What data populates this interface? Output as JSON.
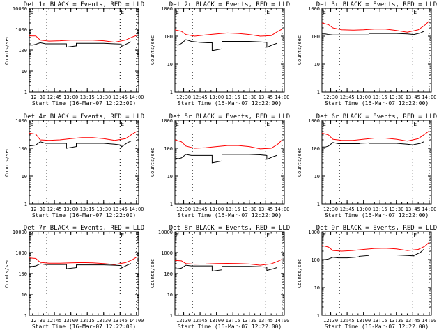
{
  "chart_data": [
    {
      "type": "line",
      "title": "Det 1r BLACK = Events, RED = LLD",
      "xlabel": "Start Time (16-Mar-07 12:22:00)",
      "ylabel": "Counts/sec",
      "yscale": "log",
      "ylim": [
        1,
        10000
      ],
      "yticks": [
        "1",
        "10",
        "100",
        "1000",
        "10000"
      ],
      "xlim": [
        "12:22",
        "14:02"
      ],
      "xticks": [
        "12:30",
        "12:45",
        "13:00",
        "13:15",
        "13:30",
        "13:45",
        "14:00"
      ],
      "vlines": [
        "12:38",
        "13:45",
        "14:00"
      ],
      "marker_labels": [
        "E",
        "E"
      ],
      "series": [
        {
          "name": "BLACK",
          "color": "#000000",
          "x": [
            "12:22",
            "12:25",
            "12:28",
            "12:32",
            "12:37",
            "12:45",
            "12:52",
            "12:56",
            "12:56",
            "13:05",
            "13:05",
            "13:10",
            "13:20",
            "13:30",
            "13:40",
            "13:46",
            "13:46",
            "13:52",
            "13:55"
          ],
          "y": [
            175,
            175,
            190,
            225,
            200,
            200,
            200,
            200,
            140,
            160,
            210,
            210,
            210,
            210,
            200,
            195,
            150,
            210,
            250
          ]
        },
        {
          "name": "RED",
          "color": "#ff0000",
          "x": [
            "12:22",
            "12:28",
            "12:32",
            "12:40",
            "12:50",
            "13:00",
            "13:10",
            "13:20",
            "13:30",
            "13:40",
            "13:50",
            "13:56",
            "14:00"
          ],
          "y": [
            480,
            470,
            300,
            270,
            280,
            300,
            300,
            300,
            280,
            240,
            300,
            420,
            500
          ]
        }
      ]
    },
    {
      "type": "line",
      "title": "Det 2r BLACK = Events, RED = LLD",
      "xlabel": "Start Time (16-Mar-07 12:22:00)",
      "ylabel": "Counts/sec",
      "yscale": "log",
      "ylim": [
        1,
        1000
      ],
      "yticks": [
        "1",
        "10",
        "100",
        "1000"
      ],
      "xlim": [
        "12:22",
        "14:02"
      ],
      "xticks": [
        "12:30",
        "12:45",
        "13:00",
        "13:15",
        "13:30",
        "13:45",
        "14:00"
      ],
      "vlines": [
        "12:38",
        "13:45",
        "14:00"
      ],
      "marker_labels": [
        "E",
        "E"
      ],
      "series": [
        {
          "name": "BLACK",
          "color": "#000000",
          "x": [
            "12:22",
            "12:25",
            "12:28",
            "12:32",
            "12:37",
            "12:45",
            "12:52",
            "12:56",
            "12:56",
            "13:05",
            "13:05",
            "13:10",
            "13:20",
            "13:30",
            "13:40",
            "13:46",
            "13:46",
            "13:52",
            "13:55"
          ],
          "y": [
            50,
            48,
            55,
            75,
            65,
            60,
            58,
            58,
            30,
            35,
            65,
            65,
            65,
            65,
            62,
            60,
            40,
            50,
            55
          ]
        },
        {
          "name": "RED",
          "color": "#ff0000",
          "x": [
            "12:22",
            "12:28",
            "12:32",
            "12:40",
            "12:50",
            "13:00",
            "13:10",
            "13:20",
            "13:30",
            "13:40",
            "13:50",
            "13:56",
            "14:00"
          ],
          "y": [
            170,
            150,
            115,
            100,
            110,
            120,
            130,
            125,
            115,
            100,
            105,
            150,
            180
          ]
        }
      ]
    },
    {
      "type": "line",
      "title": "Det 3r BLACK = Events, RED = LLD",
      "xlabel": "Start Time (16-Mar-07 12:22:00)",
      "ylabel": "Counts/sec",
      "yscale": "log",
      "ylim": [
        1,
        1000
      ],
      "yticks": [
        "1",
        "10",
        "100",
        "1000"
      ],
      "xlim": [
        "12:22",
        "14:02"
      ],
      "xticks": [
        "12:30",
        "12:45",
        "13:00",
        "13:15",
        "13:30",
        "13:45",
        "14:00"
      ],
      "vlines": [
        "12:38",
        "13:45",
        "14:00"
      ],
      "marker_labels": [
        "E",
        "E"
      ],
      "series": [
        {
          "name": "BLACK",
          "color": "#000000",
          "x": [
            "12:22",
            "12:25",
            "12:28",
            "12:32",
            "12:37",
            "12:45",
            "12:52",
            "12:56",
            "12:56",
            "13:05",
            "13:05",
            "13:10",
            "13:20",
            "13:30",
            "13:40",
            "13:46",
            "13:46",
            "13:52",
            "13:55"
          ],
          "y": [
            120,
            120,
            115,
            110,
            110,
            110,
            110,
            110,
            110,
            110,
            125,
            125,
            125,
            125,
            120,
            115,
            115,
            130,
            150
          ]
        },
        {
          "name": "RED",
          "color": "#ff0000",
          "x": [
            "12:22",
            "12:28",
            "12:32",
            "12:40",
            "12:50",
            "13:00",
            "13:10",
            "13:20",
            "13:30",
            "13:40",
            "13:50",
            "13:56",
            "14:00"
          ],
          "y": [
            300,
            260,
            200,
            170,
            165,
            170,
            180,
            180,
            160,
            140,
            170,
            250,
            350
          ]
        }
      ]
    },
    {
      "type": "line",
      "title": "Det 4r BLACK = Events, RED = LLD",
      "xlabel": "Start Time (16-Mar-07 12:22:00)",
      "ylabel": "Counts/sec",
      "yscale": "log",
      "ylim": [
        1,
        1000
      ],
      "yticks": [
        "1",
        "10",
        "100",
        "1000"
      ],
      "xlim": [
        "12:22",
        "14:02"
      ],
      "xticks": [
        "12:30",
        "12:45",
        "13:00",
        "13:15",
        "13:30",
        "13:45",
        "14:00"
      ],
      "vlines": [
        "12:38",
        "13:45",
        "14:00"
      ],
      "marker_labels": [
        "E",
        "E"
      ],
      "series": [
        {
          "name": "BLACK",
          "color": "#000000",
          "x": [
            "12:22",
            "12:25",
            "12:28",
            "12:32",
            "12:37",
            "12:45",
            "12:52",
            "12:56",
            "12:56",
            "13:05",
            "13:05",
            "13:10",
            "13:20",
            "13:30",
            "13:40",
            "13:46",
            "13:46",
            "13:52",
            "13:55"
          ],
          "y": [
            120,
            125,
            130,
            170,
            150,
            150,
            150,
            150,
            100,
            115,
            150,
            150,
            150,
            150,
            140,
            130,
            110,
            160,
            180
          ]
        },
        {
          "name": "RED",
          "color": "#ff0000",
          "x": [
            "12:22",
            "12:28",
            "12:32",
            "12:40",
            "12:50",
            "13:00",
            "13:10",
            "13:20",
            "13:30",
            "13:40",
            "13:50",
            "13:56",
            "14:00"
          ],
          "y": [
            350,
            320,
            200,
            190,
            200,
            220,
            240,
            240,
            220,
            190,
            220,
            320,
            400
          ]
        }
      ]
    },
    {
      "type": "line",
      "title": "Det 5r BLACK = Events, RED = LLD",
      "xlabel": "Start Time (16-Mar-07 12:22:00)",
      "ylabel": "Counts/sec",
      "yscale": "log",
      "ylim": [
        1,
        1000
      ],
      "yticks": [
        "1",
        "10",
        "100",
        "1000"
      ],
      "xlim": [
        "12:22",
        "14:02"
      ],
      "xticks": [
        "12:30",
        "12:45",
        "13:00",
        "13:15",
        "13:30",
        "13:45",
        "14:00"
      ],
      "vlines": [
        "12:38",
        "13:45",
        "14:00"
      ],
      "marker_labels": [
        "E",
        "E"
      ],
      "series": [
        {
          "name": "BLACK",
          "color": "#000000",
          "x": [
            "12:22",
            "12:25",
            "12:28",
            "12:32",
            "12:37",
            "12:45",
            "12:52",
            "12:56",
            "12:56",
            "13:05",
            "13:05",
            "13:10",
            "13:20",
            "13:30",
            "13:40",
            "13:46",
            "13:46",
            "13:52",
            "13:55"
          ],
          "y": [
            45,
            42,
            45,
            60,
            55,
            55,
            55,
            55,
            30,
            35,
            60,
            60,
            60,
            60,
            58,
            55,
            40,
            50,
            55
          ]
        },
        {
          "name": "RED",
          "color": "#ff0000",
          "x": [
            "12:22",
            "12:28",
            "12:32",
            "12:40",
            "12:50",
            "13:00",
            "13:10",
            "13:20",
            "13:30",
            "13:40",
            "13:50",
            "13:56",
            "14:00"
          ],
          "y": [
            200,
            170,
            120,
            100,
            105,
            115,
            125,
            125,
            115,
            95,
            100,
            140,
            200
          ]
        }
      ]
    },
    {
      "type": "line",
      "title": "Det 6r BLACK = Events, RED = LLD",
      "xlabel": "Start Time (16-Mar-07 12:22:00)",
      "ylabel": "Counts/sec",
      "yscale": "log",
      "ylim": [
        1,
        1000
      ],
      "yticks": [
        "1",
        "10",
        "100",
        "1000"
      ],
      "xlim": [
        "12:22",
        "14:02"
      ],
      "xticks": [
        "12:30",
        "12:45",
        "13:00",
        "13:15",
        "13:30",
        "13:45",
        "14:00"
      ],
      "vlines": [
        "12:38",
        "13:45",
        "14:00"
      ],
      "marker_labels": [
        "E",
        "E"
      ],
      "series": [
        {
          "name": "BLACK",
          "color": "#000000",
          "x": [
            "12:22",
            "12:25",
            "12:28",
            "12:32",
            "12:37",
            "12:45",
            "12:52",
            "12:56",
            "12:56",
            "13:05",
            "13:05",
            "13:10",
            "13:20",
            "13:30",
            "13:40",
            "13:46",
            "13:46",
            "13:52",
            "13:55"
          ],
          "y": [
            110,
            110,
            120,
            160,
            145,
            145,
            145,
            145,
            150,
            155,
            150,
            150,
            150,
            150,
            140,
            130,
            135,
            150,
            170
          ]
        },
        {
          "name": "RED",
          "color": "#ff0000",
          "x": [
            "12:22",
            "12:28",
            "12:32",
            "12:40",
            "12:50",
            "13:00",
            "13:10",
            "13:20",
            "13:30",
            "13:40",
            "13:50",
            "13:56",
            "14:00"
          ],
          "y": [
            350,
            300,
            210,
            190,
            190,
            210,
            230,
            230,
            210,
            180,
            220,
            320,
            420
          ]
        }
      ]
    },
    {
      "type": "line",
      "title": "Det 7r BLACK = Events, RED = LLD",
      "xlabel": "Start Time (16-Mar-07 12:22:00)",
      "ylabel": "Counts/sec",
      "yscale": "log",
      "ylim": [
        1,
        10000
      ],
      "yticks": [
        "1",
        "10",
        "100",
        "1000",
        "10000"
      ],
      "xlim": [
        "12:22",
        "14:02"
      ],
      "xticks": [
        "12:30",
        "12:45",
        "13:00",
        "13:15",
        "13:30",
        "13:45",
        "14:00"
      ],
      "vlines": [
        "12:38",
        "13:45",
        "14:00"
      ],
      "marker_labels": [
        "E",
        "E"
      ],
      "series": [
        {
          "name": "BLACK",
          "color": "#000000",
          "x": [
            "12:22",
            "12:25",
            "12:28",
            "12:32",
            "12:37",
            "12:45",
            "12:52",
            "12:56",
            "12:56",
            "13:05",
            "13:05",
            "13:10",
            "13:20",
            "13:30",
            "13:40",
            "13:46",
            "13:46",
            "13:52",
            "13:55"
          ],
          "y": [
            220,
            220,
            230,
            290,
            270,
            270,
            270,
            270,
            170,
            190,
            260,
            260,
            260,
            260,
            250,
            240,
            180,
            260,
            300
          ]
        },
        {
          "name": "RED",
          "color": "#ff0000",
          "x": [
            "12:22",
            "12:28",
            "12:32",
            "12:40",
            "12:50",
            "13:00",
            "13:10",
            "13:20",
            "13:30",
            "13:40",
            "13:50",
            "13:56",
            "14:00"
          ],
          "y": [
            550,
            520,
            340,
            310,
            310,
            320,
            330,
            320,
            300,
            270,
            330,
            450,
            600
          ]
        }
      ]
    },
    {
      "type": "line",
      "title": "Det 8r BLACK = Events, RED = LLD",
      "xlabel": "Start Time (16-Mar-07 12:22:00)",
      "ylabel": "Counts/sec",
      "yscale": "log",
      "ylim": [
        1,
        10000
      ],
      "yticks": [
        "1",
        "10",
        "100",
        "1000",
        "10000"
      ],
      "xlim": [
        "12:22",
        "14:02"
      ],
      "xticks": [
        "12:30",
        "12:45",
        "13:00",
        "13:15",
        "13:30",
        "13:45",
        "14:00"
      ],
      "vlines": [
        "12:38",
        "13:45",
        "14:00"
      ],
      "marker_labels": [
        "E",
        "E"
      ],
      "series": [
        {
          "name": "BLACK",
          "color": "#000000",
          "x": [
            "12:22",
            "12:25",
            "12:28",
            "12:32",
            "12:37",
            "12:45",
            "12:52",
            "12:56",
            "12:56",
            "13:05",
            "13:05",
            "13:10",
            "13:20",
            "13:30",
            "13:40",
            "13:46",
            "13:46",
            "13:52",
            "13:55"
          ],
          "y": [
            170,
            170,
            180,
            250,
            230,
            230,
            230,
            230,
            130,
            150,
            220,
            220,
            220,
            220,
            210,
            200,
            140,
            170,
            190
          ]
        },
        {
          "name": "RED",
          "color": "#ff0000",
          "x": [
            "12:22",
            "12:28",
            "12:32",
            "12:40",
            "12:50",
            "13:00",
            "13:10",
            "13:20",
            "13:30",
            "13:40",
            "13:50",
            "13:56",
            "14:00"
          ],
          "y": [
            420,
            400,
            300,
            280,
            285,
            300,
            305,
            300,
            285,
            250,
            290,
            380,
            480
          ]
        }
      ]
    },
    {
      "type": "line",
      "title": "Det 9r BLACK = Events, RED = LLD",
      "xlabel": "Start Time (16-Mar-07 12:22:00)",
      "ylabel": "Counts/sec",
      "yscale": "log",
      "ylim": [
        1,
        1000
      ],
      "yticks": [
        "1",
        "10",
        "100",
        "1000"
      ],
      "xlim": [
        "12:22",
        "14:02"
      ],
      "xticks": [
        "12:30",
        "12:45",
        "13:00",
        "13:15",
        "13:30",
        "13:45",
        "14:00"
      ],
      "vlines": [
        "12:38",
        "13:45",
        "14:00"
      ],
      "marker_labels": [
        "E",
        "E"
      ],
      "series": [
        {
          "name": "BLACK",
          "color": "#000000",
          "x": [
            "12:22",
            "12:25",
            "12:28",
            "12:32",
            "12:37",
            "12:45",
            "12:52",
            "12:56",
            "12:56",
            "13:05",
            "13:05",
            "13:10",
            "13:20",
            "13:30",
            "13:40",
            "13:46",
            "13:46",
            "13:52",
            "13:55"
          ],
          "y": [
            100,
            100,
            105,
            120,
            115,
            115,
            120,
            125,
            130,
            140,
            145,
            145,
            145,
            145,
            140,
            135,
            140,
            180,
            230
          ]
        },
        {
          "name": "RED",
          "color": "#ff0000",
          "x": [
            "12:22",
            "12:28",
            "12:32",
            "12:40",
            "12:50",
            "13:00",
            "13:10",
            "13:20",
            "13:30",
            "13:40",
            "13:50",
            "13:56",
            "14:00"
          ],
          "y": [
            320,
            280,
            210,
            200,
            210,
            230,
            250,
            255,
            240,
            210,
            230,
            300,
            420
          ]
        }
      ]
    }
  ]
}
